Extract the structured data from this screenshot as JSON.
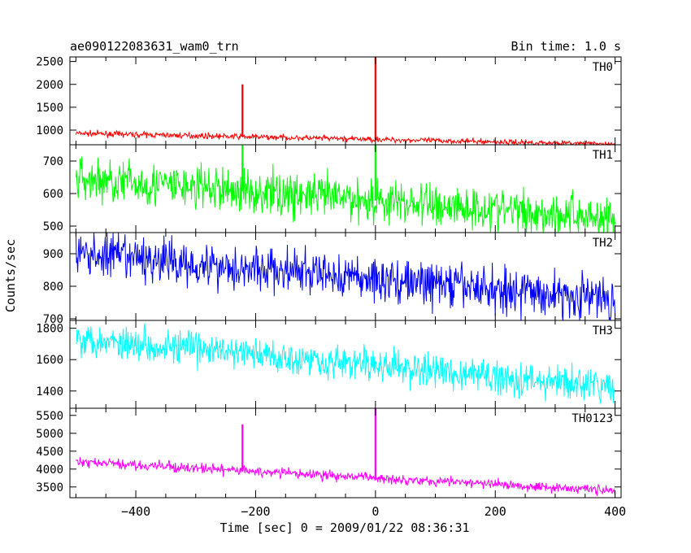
{
  "header": {
    "title": "ae090122083631_wam0_trn",
    "bin_time": "Bin time: 1.0 s"
  },
  "chart_data": {
    "type": "line",
    "xlabel": "Time [sec] 0 = 2009/01/22 08:36:31",
    "ylabel": "Counts/sec",
    "xlim": [
      -510,
      410
    ],
    "xticks": [
      -400,
      -200,
      0,
      200,
      400
    ],
    "x_tick_labels": [
      "−400",
      "−200",
      "0",
      "200",
      "400"
    ],
    "grid": false,
    "panels": [
      {
        "name": "TH0",
        "color": "#ff0000",
        "ylim": [
          680,
          2600
        ],
        "yticks": [
          1000,
          1500,
          2000,
          2500
        ],
        "start": 930,
        "end": 690,
        "noise": 30,
        "spikes": [
          {
            "x": -222,
            "y": 2000
          },
          {
            "x": 0,
            "y": 2600
          }
        ]
      },
      {
        "name": "TH1",
        "color": "#00ff00",
        "ylim": [
          480,
          750
        ],
        "yticks": [
          500,
          600,
          700
        ],
        "start": 645,
        "end": 525,
        "noise": 35,
        "spikes": [
          {
            "x": -222,
            "y": 750
          },
          {
            "x": 0,
            "y": 750
          }
        ]
      },
      {
        "name": "TH2",
        "color": "#0000ff",
        "ylim": [
          695,
          965
        ],
        "yticks": [
          700,
          800,
          900
        ],
        "start": 900,
        "end": 760,
        "noise": 35,
        "spikes": []
      },
      {
        "name": "TH3",
        "color": "#00ffff",
        "ylim": [
          1290,
          1850
        ],
        "yticks": [
          1400,
          1600,
          1800
        ],
        "start": 1740,
        "end": 1420,
        "noise": 55,
        "spikes": []
      },
      {
        "name": "TH0123",
        "color": "#ff00ff",
        "ylim": [
          3200,
          5700
        ],
        "yticks": [
          3500,
          4000,
          4500,
          5000,
          5500
        ],
        "start": 4200,
        "end": 3400,
        "noise": 70,
        "spikes": [
          {
            "x": -222,
            "y": 5250
          },
          {
            "x": 0,
            "y": 5700
          }
        ]
      }
    ]
  }
}
